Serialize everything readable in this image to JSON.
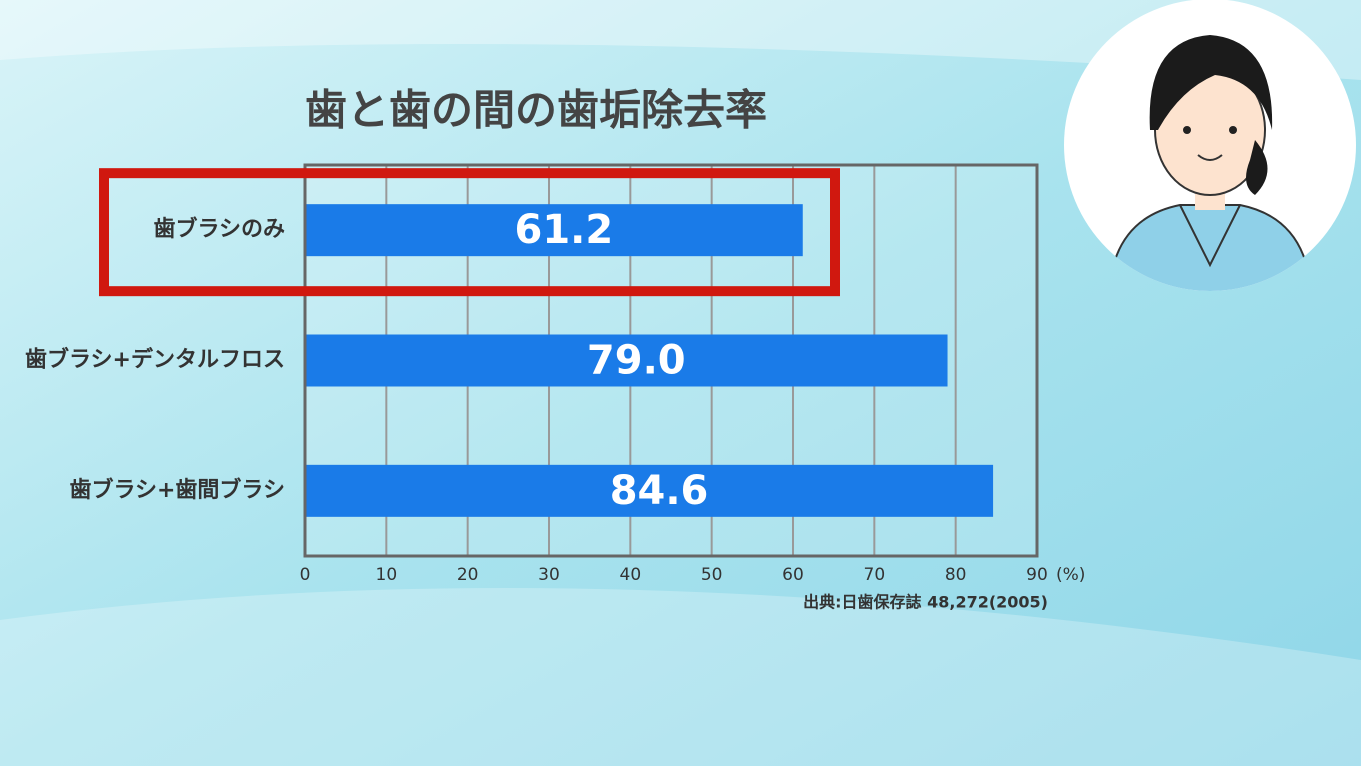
{
  "chart_data": {
    "type": "bar",
    "orientation": "horizontal",
    "title": "歯と歯の間の歯垢除去率",
    "categories": [
      "歯ブラシのみ",
      "歯ブラシ+デンタルフロス",
      "歯ブラシ+歯間ブラシ"
    ],
    "values": [
      61.2,
      79.0,
      84.6
    ],
    "value_labels": [
      "61.2",
      "79.0",
      "84.6"
    ],
    "color": "#1a7be8",
    "xlim": [
      0,
      90
    ],
    "xticks": [
      0,
      10,
      20,
      30,
      40,
      50,
      60,
      70,
      80,
      90
    ],
    "x_label": "(%)",
    "source": "出典:日歯保存誌 48,272(2005)",
    "grid": true
  }
}
